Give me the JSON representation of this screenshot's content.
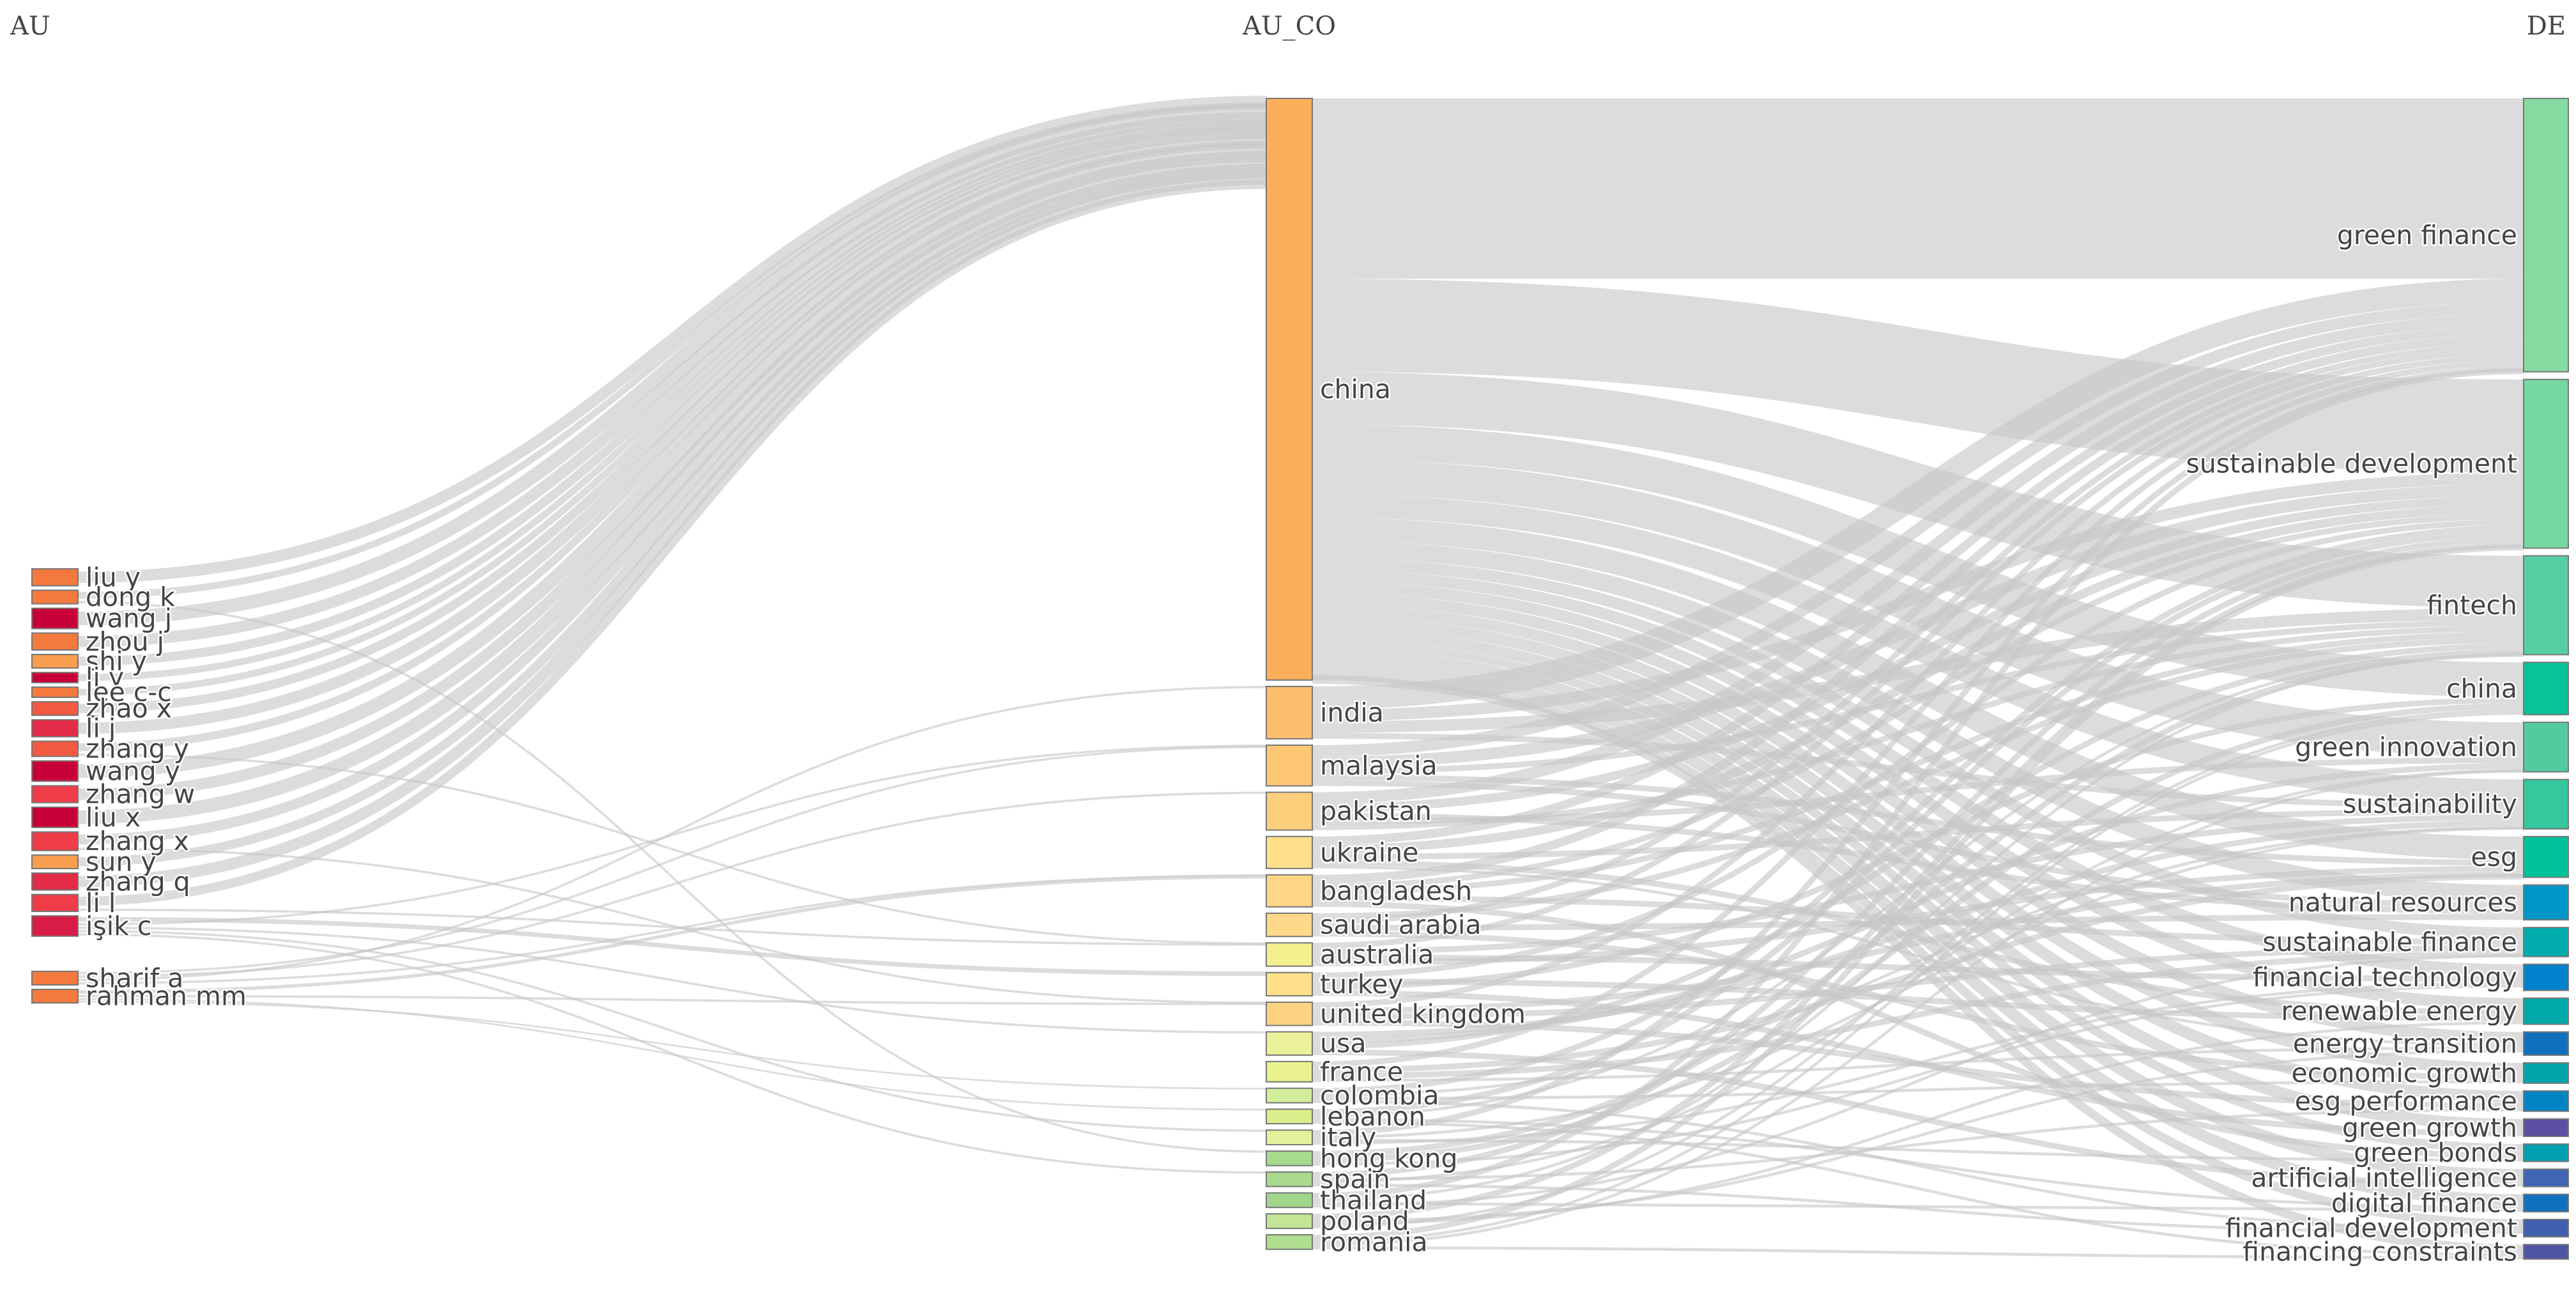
{
  "chart_data": {
    "type": "sankey",
    "columns": [
      "AU",
      "AU_CO",
      "DE"
    ],
    "nodes": {
      "AU": [
        {
          "name": "liu y",
          "value": 1.0,
          "color": "#f4793e"
        },
        {
          "name": "dong k",
          "value": 0.8,
          "color": "#f4793e"
        },
        {
          "name": "wang j",
          "value": 1.2,
          "color": "#c8003a"
        },
        {
          "name": "zhou j",
          "value": 1.0,
          "color": "#f4793e"
        },
        {
          "name": "shi y",
          "value": 0.8,
          "color": "#f89e4f"
        },
        {
          "name": "li y",
          "value": 0.6,
          "color": "#c8003a"
        },
        {
          "name": "lee c-c",
          "value": 0.6,
          "color": "#f4793e"
        },
        {
          "name": "zhao x",
          "value": 0.8,
          "color": "#f25a42"
        },
        {
          "name": "li j",
          "value": 1.0,
          "color": "#e32b47"
        },
        {
          "name": "zhang y",
          "value": 0.9,
          "color": "#f25a42"
        },
        {
          "name": "wang y",
          "value": 1.2,
          "color": "#c8003a"
        },
        {
          "name": "zhang w",
          "value": 1.0,
          "color": "#ee3d48"
        },
        {
          "name": "liu x",
          "value": 1.2,
          "color": "#c8003a"
        },
        {
          "name": "zhang x",
          "value": 1.1,
          "color": "#ee3d48"
        },
        {
          "name": "sun y",
          "value": 0.8,
          "color": "#f89e4f"
        },
        {
          "name": "zhang q",
          "value": 1.0,
          "color": "#e32b47"
        },
        {
          "name": "li l",
          "value": 1.0,
          "color": "#ee3d48"
        },
        {
          "name": "işik c",
          "value": 1.2,
          "color": "#d81c47"
        },
        {
          "name": "sharif a",
          "value": 0.8,
          "color": "#f4793e"
        },
        {
          "name": "rahman mm",
          "value": 0.8,
          "color": "#f4793e"
        }
      ],
      "AU_CO": [
        {
          "name": "china",
          "value": 100,
          "color": "#fdae5a"
        },
        {
          "name": "india",
          "value": 9,
          "color": "#fdbe6e"
        },
        {
          "name": "malaysia",
          "value": 7,
          "color": "#fdc774"
        },
        {
          "name": "pakistan",
          "value": 6.5,
          "color": "#fdcf7c"
        },
        {
          "name": "ukraine",
          "value": 5.5,
          "color": "#fee08b"
        },
        {
          "name": "bangladesh",
          "value": 5.5,
          "color": "#fed685"
        },
        {
          "name": "saudi arabia",
          "value": 4,
          "color": "#fed98a"
        },
        {
          "name": "australia",
          "value": 4,
          "color": "#f3f08f"
        },
        {
          "name": "turkey",
          "value": 4,
          "color": "#fee08b"
        },
        {
          "name": "united kingdom",
          "value": 4,
          "color": "#fdd381"
        },
        {
          "name": "usa",
          "value": 4,
          "color": "#eaf199"
        },
        {
          "name": "france",
          "value": 3.5,
          "color": "#eaf18f"
        },
        {
          "name": "colombia",
          "value": 2.5,
          "color": "#d3ee9a"
        },
        {
          "name": "lebanon",
          "value": 2.5,
          "color": "#d9ef8b"
        },
        {
          "name": "italy",
          "value": 2.5,
          "color": "#e3f39b"
        },
        {
          "name": "hong kong",
          "value": 2.5,
          "color": "#a6db8e"
        },
        {
          "name": "spain",
          "value": 2.5,
          "color": "#a9d98f"
        },
        {
          "name": "thailand",
          "value": 2.5,
          "color": "#a1d68c"
        },
        {
          "name": "poland",
          "value": 2.5,
          "color": "#c2e596"
        },
        {
          "name": "romania",
          "value": 2.5,
          "color": "#b0dd8f"
        }
      ],
      "DE": [
        {
          "name": "green finance",
          "value": 47,
          "color": "#86dba2"
        },
        {
          "name": "sustainable development",
          "value": 29,
          "color": "#77d7a0"
        },
        {
          "name": "fintech",
          "value": 17,
          "color": "#56d0a2"
        },
        {
          "name": "china",
          "value": 9,
          "color": "#08c299"
        },
        {
          "name": "green innovation",
          "value": 8.5,
          "color": "#52cc9f"
        },
        {
          "name": "sustainability",
          "value": 8.5,
          "color": "#36c79d"
        },
        {
          "name": "esg",
          "value": 7,
          "color": "#00c29a"
        },
        {
          "name": "natural resources",
          "value": 6,
          "color": "#0096c5"
        },
        {
          "name": "sustainable finance",
          "value": 5,
          "color": "#00adac"
        },
        {
          "name": "financial technology",
          "value": 4.5,
          "color": "#0082cc"
        },
        {
          "name": "renewable energy",
          "value": 4.5,
          "color": "#00a8a8"
        },
        {
          "name": "energy transition",
          "value": 4,
          "color": "#1170bd"
        },
        {
          "name": "economic growth",
          "value": 3.5,
          "color": "#00a5ac"
        },
        {
          "name": "esg performance",
          "value": 3.5,
          "color": "#0085c2"
        },
        {
          "name": "green growth",
          "value": 3,
          "color": "#5e4fa2"
        },
        {
          "name": "green bonds",
          "value": 3,
          "color": "#00a0b0"
        },
        {
          "name": "artificial intelligence",
          "value": 3,
          "color": "#3f65b4"
        },
        {
          "name": "digital finance",
          "value": 3,
          "color": "#1070c0"
        },
        {
          "name": "financial development",
          "value": 3,
          "color": "#4060ae"
        },
        {
          "name": "financing constraints",
          "value": 2.5,
          "color": "#5155a6"
        }
      ]
    },
    "links_au_co": [
      [
        "liu y",
        "china",
        1.0
      ],
      [
        "dong k",
        "china",
        0.6
      ],
      [
        "dong k",
        "hong kong",
        0.2
      ],
      [
        "wang j",
        "china",
        1.2
      ],
      [
        "zhou j",
        "china",
        1.0
      ],
      [
        "shi y",
        "china",
        0.8
      ],
      [
        "li y",
        "china",
        0.6
      ],
      [
        "lee c-c",
        "china",
        0.6
      ],
      [
        "zhao x",
        "china",
        0.8
      ],
      [
        "li j",
        "china",
        1.0
      ],
      [
        "zhang y",
        "china",
        0.7
      ],
      [
        "zhang y",
        "australia",
        0.2
      ],
      [
        "wang y",
        "china",
        1.2
      ],
      [
        "zhang w",
        "china",
        1.0
      ],
      [
        "liu x",
        "china",
        1.2
      ],
      [
        "zhang x",
        "china",
        0.9
      ],
      [
        "zhang x",
        "united kingdom",
        0.2
      ],
      [
        "sun y",
        "china",
        0.8
      ],
      [
        "zhang q",
        "china",
        1.0
      ],
      [
        "li l",
        "china",
        0.8
      ],
      [
        "li l",
        "australia",
        0.2
      ],
      [
        "işik c",
        "turkey",
        0.4
      ],
      [
        "işik c",
        "malaysia",
        0.2
      ],
      [
        "işik c",
        "usa",
        0.2
      ],
      [
        "işik c",
        "italy",
        0.2
      ],
      [
        "işik c",
        "spain",
        0.2
      ],
      [
        "sharif a",
        "malaysia",
        0.2
      ],
      [
        "sharif a",
        "pakistan",
        0.2
      ],
      [
        "sharif a",
        "india",
        0.2
      ],
      [
        "sharif a",
        "bangladesh",
        0.2
      ],
      [
        "rahman mm",
        "bangladesh",
        0.3
      ],
      [
        "rahman mm",
        "united kingdom",
        0.2
      ],
      [
        "rahman mm",
        "lebanon",
        0.15
      ],
      [
        "rahman mm",
        "colombia",
        0.15
      ]
    ],
    "links_co_de": [
      [
        "china",
        "green finance",
        31
      ],
      [
        "china",
        "sustainable development",
        16
      ],
      [
        "china",
        "fintech",
        9
      ],
      [
        "china",
        "china",
        6
      ],
      [
        "china",
        "green innovation",
        6
      ],
      [
        "china",
        "sustainability",
        4
      ],
      [
        "china",
        "esg",
        4
      ],
      [
        "china",
        "natural resources",
        3
      ],
      [
        "china",
        "sustainable finance",
        2
      ],
      [
        "china",
        "financial technology",
        2
      ],
      [
        "china",
        "renewable energy",
        2
      ],
      [
        "china",
        "energy transition",
        2
      ],
      [
        "china",
        "economic growth",
        2
      ],
      [
        "china",
        "esg performance",
        2
      ],
      [
        "china",
        "green growth",
        2
      ],
      [
        "china",
        "green bonds",
        1.5
      ],
      [
        "china",
        "artificial intelligence",
        2
      ],
      [
        "china",
        "digital finance",
        2
      ],
      [
        "china",
        "financial development",
        1.5
      ],
      [
        "china",
        "financing constraints",
        1.5
      ],
      [
        "india",
        "green finance",
        4
      ],
      [
        "india",
        "sustainable development",
        2
      ],
      [
        "india",
        "fintech",
        2
      ],
      [
        "india",
        "sustainability",
        1
      ],
      [
        "malaysia",
        "green finance",
        2
      ],
      [
        "malaysia",
        "sustainable development",
        2
      ],
      [
        "malaysia",
        "fintech",
        1
      ],
      [
        "malaysia",
        "esg",
        1
      ],
      [
        "malaysia",
        "natural resources",
        1
      ],
      [
        "pakistan",
        "green finance",
        2
      ],
      [
        "pakistan",
        "sustainable development",
        1.5
      ],
      [
        "pakistan",
        "natural resources",
        1
      ],
      [
        "pakistan",
        "green innovation",
        1
      ],
      [
        "pakistan",
        "fintech",
        1
      ],
      [
        "ukraine",
        "green finance",
        1.5
      ],
      [
        "ukraine",
        "sustainable development",
        1.5
      ],
      [
        "ukraine",
        "sustainability",
        1
      ],
      [
        "ukraine",
        "renewable energy",
        1
      ],
      [
        "ukraine",
        "energy transition",
        0.5
      ],
      [
        "bangladesh",
        "green finance",
        1.5
      ],
      [
        "bangladesh",
        "sustainable development",
        1
      ],
      [
        "bangladesh",
        "fintech",
        1
      ],
      [
        "bangladesh",
        "sustainable finance",
        1
      ],
      [
        "bangladesh",
        "green bonds",
        1
      ],
      [
        "saudi arabia",
        "fintech",
        1
      ],
      [
        "saudi arabia",
        "green finance",
        1
      ],
      [
        "saudi arabia",
        "natural resources",
        1
      ],
      [
        "saudi arabia",
        "economic growth",
        1
      ],
      [
        "australia",
        "green finance",
        1
      ],
      [
        "australia",
        "sustainability",
        1
      ],
      [
        "australia",
        "financial technology",
        1
      ],
      [
        "australia",
        "esg",
        1
      ],
      [
        "turkey",
        "sustainable development",
        1
      ],
      [
        "turkey",
        "renewable energy",
        1
      ],
      [
        "turkey",
        "china",
        1
      ],
      [
        "turkey",
        "green growth",
        1
      ],
      [
        "united kingdom",
        "green finance",
        1
      ],
      [
        "united kingdom",
        "esg",
        1
      ],
      [
        "united kingdom",
        "sustainable finance",
        1
      ],
      [
        "united kingdom",
        "esg performance",
        1
      ],
      [
        "usa",
        "sustainability",
        1
      ],
      [
        "usa",
        "green innovation",
        1
      ],
      [
        "usa",
        "fintech",
        1
      ],
      [
        "usa",
        "artificial intelligence",
        1
      ],
      [
        "france",
        "green finance",
        1
      ],
      [
        "france",
        "esg",
        1
      ],
      [
        "france",
        "sustainable finance",
        1
      ],
      [
        "france",
        "energy transition",
        0.5
      ],
      [
        "colombia",
        "sustainable development",
        1
      ],
      [
        "colombia",
        "sustainability",
        0.5
      ],
      [
        "colombia",
        "economic growth",
        0.5
      ],
      [
        "colombia",
        "financial development",
        0.5
      ],
      [
        "lebanon",
        "sustainable development",
        1
      ],
      [
        "lebanon",
        "fintech",
        0.5
      ],
      [
        "lebanon",
        "digital finance",
        0.5
      ],
      [
        "lebanon",
        "financing constraints",
        0.5
      ],
      [
        "italy",
        "green finance",
        1
      ],
      [
        "italy",
        "sustainability",
        0.5
      ],
      [
        "italy",
        "green bonds",
        0.5
      ],
      [
        "italy",
        "financial technology",
        0.5
      ],
      [
        "hong kong",
        "fintech",
        1
      ],
      [
        "hong kong",
        "china",
        1
      ],
      [
        "hong kong",
        "financial technology",
        0.5
      ],
      [
        "spain",
        "sustainable development",
        1
      ],
      [
        "spain",
        "esg performance",
        0.5
      ],
      [
        "spain",
        "green innovation",
        0.5
      ],
      [
        "spain",
        "financial development",
        0.5
      ],
      [
        "thailand",
        "green finance",
        1
      ],
      [
        "thailand",
        "fintech",
        0.5
      ],
      [
        "thailand",
        "digital finance",
        0.5
      ],
      [
        "thailand",
        "sustainable finance",
        0.5
      ],
      [
        "poland",
        "sustainable development",
        1
      ],
      [
        "poland",
        "energy transition",
        0.5
      ],
      [
        "poland",
        "renewable energy",
        0.5
      ],
      [
        "poland",
        "china",
        0.5
      ],
      [
        "romania",
        "sustainable development",
        1
      ],
      [
        "romania",
        "china",
        0.5
      ],
      [
        "romania",
        "green innovation",
        0.5
      ],
      [
        "romania",
        "financing constraints",
        0.5
      ]
    ]
  }
}
